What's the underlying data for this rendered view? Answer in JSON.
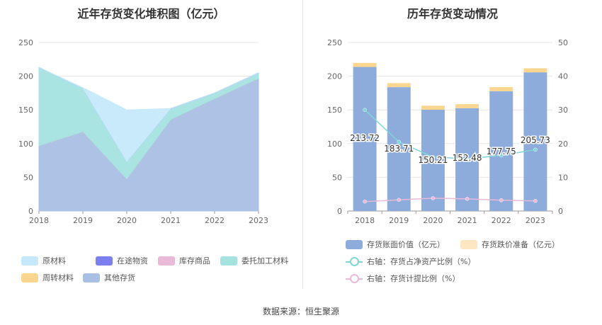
{
  "source_label": "数据来源：恒生聚源",
  "chart_data": [
    {
      "type": "area",
      "stacked": true,
      "title": "近年存货变化堆积图（亿元）",
      "x": [
        "2018",
        "2019",
        "2020",
        "2021",
        "2022",
        "2023"
      ],
      "ylim": [
        0,
        250
      ],
      "yticks": [
        0,
        50,
        100,
        150,
        200,
        250
      ],
      "grid": true,
      "legend_position": "bottom-left",
      "series": [
        {
          "name": "其他存货",
          "color": "#aabfe4",
          "values": [
            97,
            118,
            48,
            136,
            167,
            197
          ]
        },
        {
          "name": "周转材料",
          "color": "#fcd68f",
          "values": [
            0,
            0,
            0,
            0,
            0,
            0
          ]
        },
        {
          "name": "委托加工材料",
          "color": "#a5e3e0",
          "values": [
            116,
            64,
            25,
            16,
            8,
            8
          ]
        },
        {
          "name": "库存商品",
          "color": "#eab9d8",
          "values": [
            0,
            0,
            0,
            0,
            0,
            0
          ]
        },
        {
          "name": "在途物资",
          "color": "#7b7ff0",
          "values": [
            0,
            0,
            0,
            0,
            0,
            0
          ]
        },
        {
          "name": "原材料",
          "color": "#c5e9fb",
          "values": [
            0,
            1,
            77,
            0,
            0,
            0
          ]
        }
      ],
      "legend_order": [
        "原材料",
        "在途物资",
        "库存商品",
        "委托加工材料",
        "周转材料",
        "其他存货"
      ]
    },
    {
      "type": "bar",
      "title": "历年存货变动情况",
      "categories": [
        "2018",
        "2019",
        "2020",
        "2021",
        "2022",
        "2023"
      ],
      "ylim": [
        0,
        250
      ],
      "yticks": [
        0,
        50,
        100,
        150,
        200,
        250
      ],
      "y2lim": [
        0,
        50
      ],
      "y2ticks": [
        0,
        10,
        20,
        30,
        40,
        50
      ],
      "grid": true,
      "legend_position": "bottom",
      "series": [
        {
          "name": "存货账面价值（亿元）",
          "kind": "bar",
          "color": "#8eacdb",
          "values": [
            213.72,
            183.71,
            150.21,
            152.48,
            177.75,
            205.73
          ],
          "labels": [
            "213.72",
            "183.71",
            "150.21",
            "152.48",
            "177.75",
            "205.73"
          ]
        },
        {
          "name": "存货跌价准备（亿元）",
          "kind": "bar-stack",
          "color": "#fcd68f",
          "legend_color": "#fde6c2",
          "values": [
            6,
            6,
            6,
            6,
            6,
            6
          ]
        },
        {
          "name": "右轴：存货占净资产比例（%）",
          "kind": "line",
          "axis": "right",
          "color": "#7fd6d6",
          "values": [
            30,
            20.5,
            16,
            15.5,
            16.5,
            18.2
          ]
        },
        {
          "name": "右轴：存货计提比例（%）",
          "kind": "line",
          "axis": "right",
          "color": "#eab9d8",
          "values": [
            2.8,
            3.3,
            3.8,
            3.6,
            3.2,
            3.0
          ]
        }
      ]
    }
  ]
}
